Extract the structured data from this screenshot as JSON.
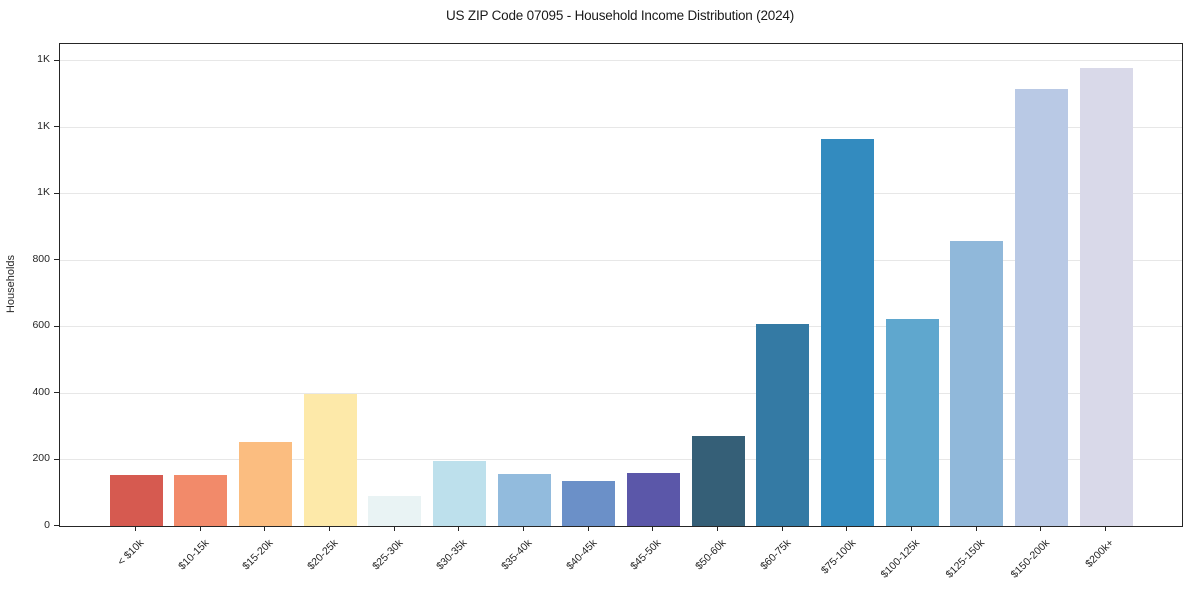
{
  "chart_data": {
    "type": "bar",
    "title": "US ZIP Code 07095 - Household Income Distribution (2024)",
    "xlabel": "",
    "ylabel": "Households",
    "categories": [
      "< $10k",
      "$10-15k",
      "$15-20k",
      "$20-25k",
      "$25-30k",
      "$30-35k",
      "$35-40k",
      "$40-45k",
      "$45-50k",
      "$50-60k",
      "$60-75k",
      "$75-100k",
      "$100-125k",
      "$125-150k",
      "$150-200k",
      "$200k+"
    ],
    "values": [
      152,
      152,
      252,
      397,
      90,
      196,
      156,
      136,
      160,
      270,
      608,
      1165,
      622,
      856,
      1315,
      1378
    ],
    "bar_colors": [
      "#d65a50",
      "#f28a6a",
      "#fbbd80",
      "#fde9a9",
      "#e9f3f4",
      "#bde0ec",
      "#92bbdd",
      "#6b90c8",
      "#5b57a9",
      "#355f77",
      "#347aa4",
      "#338bbf",
      "#5fa7ce",
      "#90b8da",
      "#b9c9e5",
      "#d9d9e9"
    ],
    "y_ticks": [
      {
        "value": 0,
        "label": "0"
      },
      {
        "value": 200,
        "label": "200"
      },
      {
        "value": 400,
        "label": "400"
      },
      {
        "value": 600,
        "label": "600"
      },
      {
        "value": 800,
        "label": "800"
      },
      {
        "value": 1000,
        "label": "1K"
      },
      {
        "value": 1200,
        "label": "1K"
      },
      {
        "value": 1400,
        "label": "1K"
      }
    ],
    "ylim": [
      0,
      1450
    ],
    "grid": "horizontal",
    "legend": "none",
    "background_color": "#ffffff",
    "axis_color": "#262626",
    "grid_color": "#e7e7e7",
    "text_color": "#262626"
  }
}
